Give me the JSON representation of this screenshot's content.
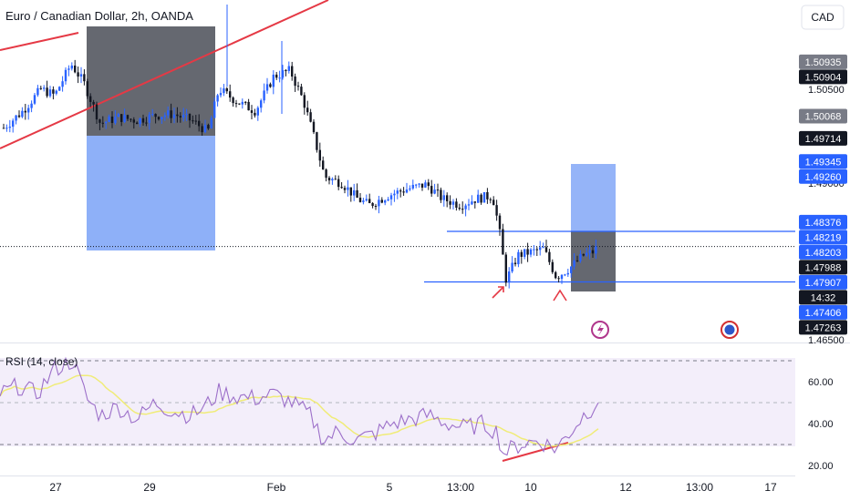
{
  "header": {
    "symbol_title": "Euro / Canadian Dollar, 2h, OANDA"
  },
  "price_axis": {
    "currency": "CAD",
    "plain_ticks": [
      {
        "label": "1.50500",
        "value": 1.505
      },
      {
        "label": "1.49000",
        "value": 1.49
      },
      {
        "label": "1.46500",
        "value": 1.465
      }
    ],
    "badges": [
      {
        "label": "1.50935",
        "value": 1.50935,
        "bg": "#787b86",
        "fg": "#ffffff"
      },
      {
        "label": "1.50904",
        "value": 1.50904,
        "bg": "#131722",
        "fg": "#ffffff"
      },
      {
        "label": "1.50068",
        "value": 1.50068,
        "bg": "#787b86",
        "fg": "#ffffff"
      },
      {
        "label": "1.49714",
        "value": 1.49714,
        "bg": "#131722",
        "fg": "#ffffff"
      },
      {
        "label": "1.49345",
        "value": 1.49345,
        "bg": "#2962ff",
        "fg": "#ffffff"
      },
      {
        "label": "1.49260",
        "value": 1.4926,
        "bg": "#2962ff",
        "fg": "#ffffff"
      },
      {
        "label": "1.48376",
        "value": 1.48376,
        "bg": "#2962ff",
        "fg": "#ffffff"
      },
      {
        "label": "1.48219",
        "value": 1.48219,
        "bg": "#2962ff",
        "fg": "#ffffff"
      },
      {
        "label": "1.48203",
        "value": 1.48203,
        "bg": "#2962ff",
        "fg": "#ffffff"
      },
      {
        "label": "1.47988",
        "value": 1.47988,
        "bg": "#131722",
        "fg": "#ffffff"
      },
      {
        "label": "14:32",
        "value": 1.47855,
        "bg": "#131722",
        "fg": "#ffffff"
      },
      {
        "label": "1.47907",
        "value": 1.47907,
        "bg": "#2962ff",
        "fg": "#ffffff"
      },
      {
        "label": "1.47406",
        "value": 1.47406,
        "bg": "#2962ff",
        "fg": "#ffffff"
      },
      {
        "label": "1.47263",
        "value": 1.47263,
        "bg": "#131722",
        "fg": "#ffffff"
      }
    ]
  },
  "rsi": {
    "label": "RSI (14, close)",
    "ticks": [
      {
        "label": "60.00",
        "value": 60
      },
      {
        "label": "40.00",
        "value": 40
      },
      {
        "label": "20.00",
        "value": 20
      }
    ],
    "upper_band": 70,
    "lower_band": 30,
    "line_color": "#9c6fc9",
    "ma_color": "#f0ec78"
  },
  "time_axis": {
    "labels": [
      {
        "label": "27",
        "i": 0
      },
      {
        "label": "29",
        "i": 1
      },
      {
        "label": "Feb",
        "i": 2
      },
      {
        "label": "5",
        "i": 3
      },
      {
        "label": "13:00",
        "i": 4
      },
      {
        "label": "10",
        "i": 5
      },
      {
        "label": "12",
        "i": 6
      },
      {
        "label": "13:00",
        "i": 7
      },
      {
        "label": "17",
        "i": 8
      }
    ]
  },
  "colors": {
    "up": "#2962ff",
    "down": "#131722",
    "trendline": "#e53945",
    "level_line": "#2962ff",
    "gray_box": "#5d6068",
    "blue_box": "#82a7f7"
  },
  "icons": {
    "flash": "flash-event-icon",
    "flag": "economic-event-icon"
  }
}
